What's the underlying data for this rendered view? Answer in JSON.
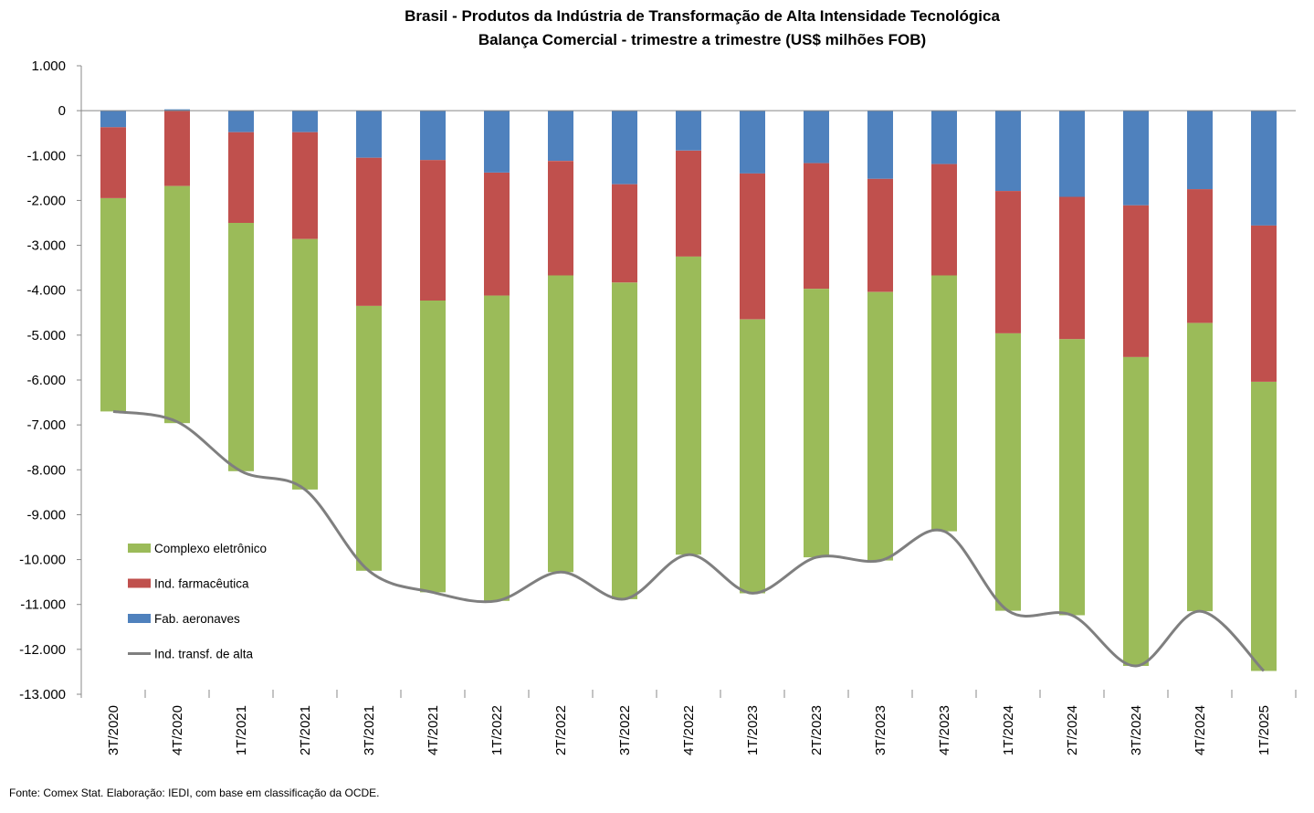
{
  "chart_data": {
    "type": "bar",
    "stacked": true,
    "title": "Brasil - Produtos da Indústria de Transformação de Alta Intensidade Tecnológica",
    "subtitle": "Balança Comercial - trimestre a trimestre (US$ milhões FOB)",
    "xlabel": "",
    "ylabel": "",
    "ylim": [
      -13000,
      1000
    ],
    "yticks": [
      1000,
      0,
      -1000,
      -2000,
      -3000,
      -4000,
      -5000,
      -6000,
      -7000,
      -8000,
      -9000,
      -10000,
      -11000,
      -12000,
      -13000
    ],
    "ytick_labels": [
      "1.000",
      "0",
      "-1.000",
      "-2.000",
      "-3.000",
      "-4.000",
      "-5.000",
      "-6.000",
      "-7.000",
      "-8.000",
      "-9.000",
      "-10.000",
      "-11.000",
      "-12.000",
      "-13.000"
    ],
    "categories": [
      "3T/2020",
      "4T/2020",
      "1T/2021",
      "2T/2021",
      "3T/2021",
      "4T/2021",
      "1T/2022",
      "2T/2022",
      "3T/2022",
      "4T/2022",
      "1T/2023",
      "2T/2023",
      "3T/2023",
      "4T/2023",
      "1T/2024",
      "2T/2024",
      "3T/2024",
      "4T/2024",
      "1T/2025"
    ],
    "series": [
      {
        "name": "Fab. aeronaves",
        "kind": "bar",
        "color": "#4F81BD",
        "values": [
          -370,
          30,
          -480,
          -480,
          -1050,
          -1100,
          -1380,
          -1120,
          -1640,
          -890,
          -1400,
          -1170,
          -1520,
          -1190,
          -1790,
          -1920,
          -2110,
          -1750,
          -2560
        ]
      },
      {
        "name": "Ind. farmacêutica",
        "kind": "bar",
        "color": "#C0504D",
        "values": [
          -1580,
          -1680,
          -2020,
          -2380,
          -3300,
          -3130,
          -2740,
          -2550,
          -2190,
          -2360,
          -3250,
          -2800,
          -2520,
          -2480,
          -3170,
          -3170,
          -3380,
          -2980,
          -3480
        ]
      },
      {
        "name": "Complexo eletrônico",
        "kind": "bar",
        "color": "#9BBB59",
        "values": [
          -4750,
          -5280,
          -5530,
          -5580,
          -5900,
          -6500,
          -6800,
          -6610,
          -7050,
          -6640,
          -6100,
          -5980,
          -5980,
          -5700,
          -6180,
          -6150,
          -6880,
          -6420,
          -6440
        ]
      },
      {
        "name": "Ind. transf. de alta",
        "kind": "line",
        "color": "#7F7F7F",
        "values": [
          -6700,
          -6930,
          -8030,
          -8440,
          -10250,
          -10730,
          -10920,
          -10280,
          -10880,
          -9890,
          -10750,
          -9950,
          -10020,
          -9370,
          -11140,
          -11240,
          -12370,
          -11150,
          -12480
        ]
      }
    ],
    "legend_order": [
      "Complexo eletrônico",
      "Ind. farmacêutica",
      "Fab. aeronaves",
      "Ind. transf. de alta"
    ],
    "legend_position": "lower-left inside plot",
    "grid": false
  },
  "source": "Fonte:  Comex Stat. Elaboração: IEDI, com base em classificação da OCDE."
}
